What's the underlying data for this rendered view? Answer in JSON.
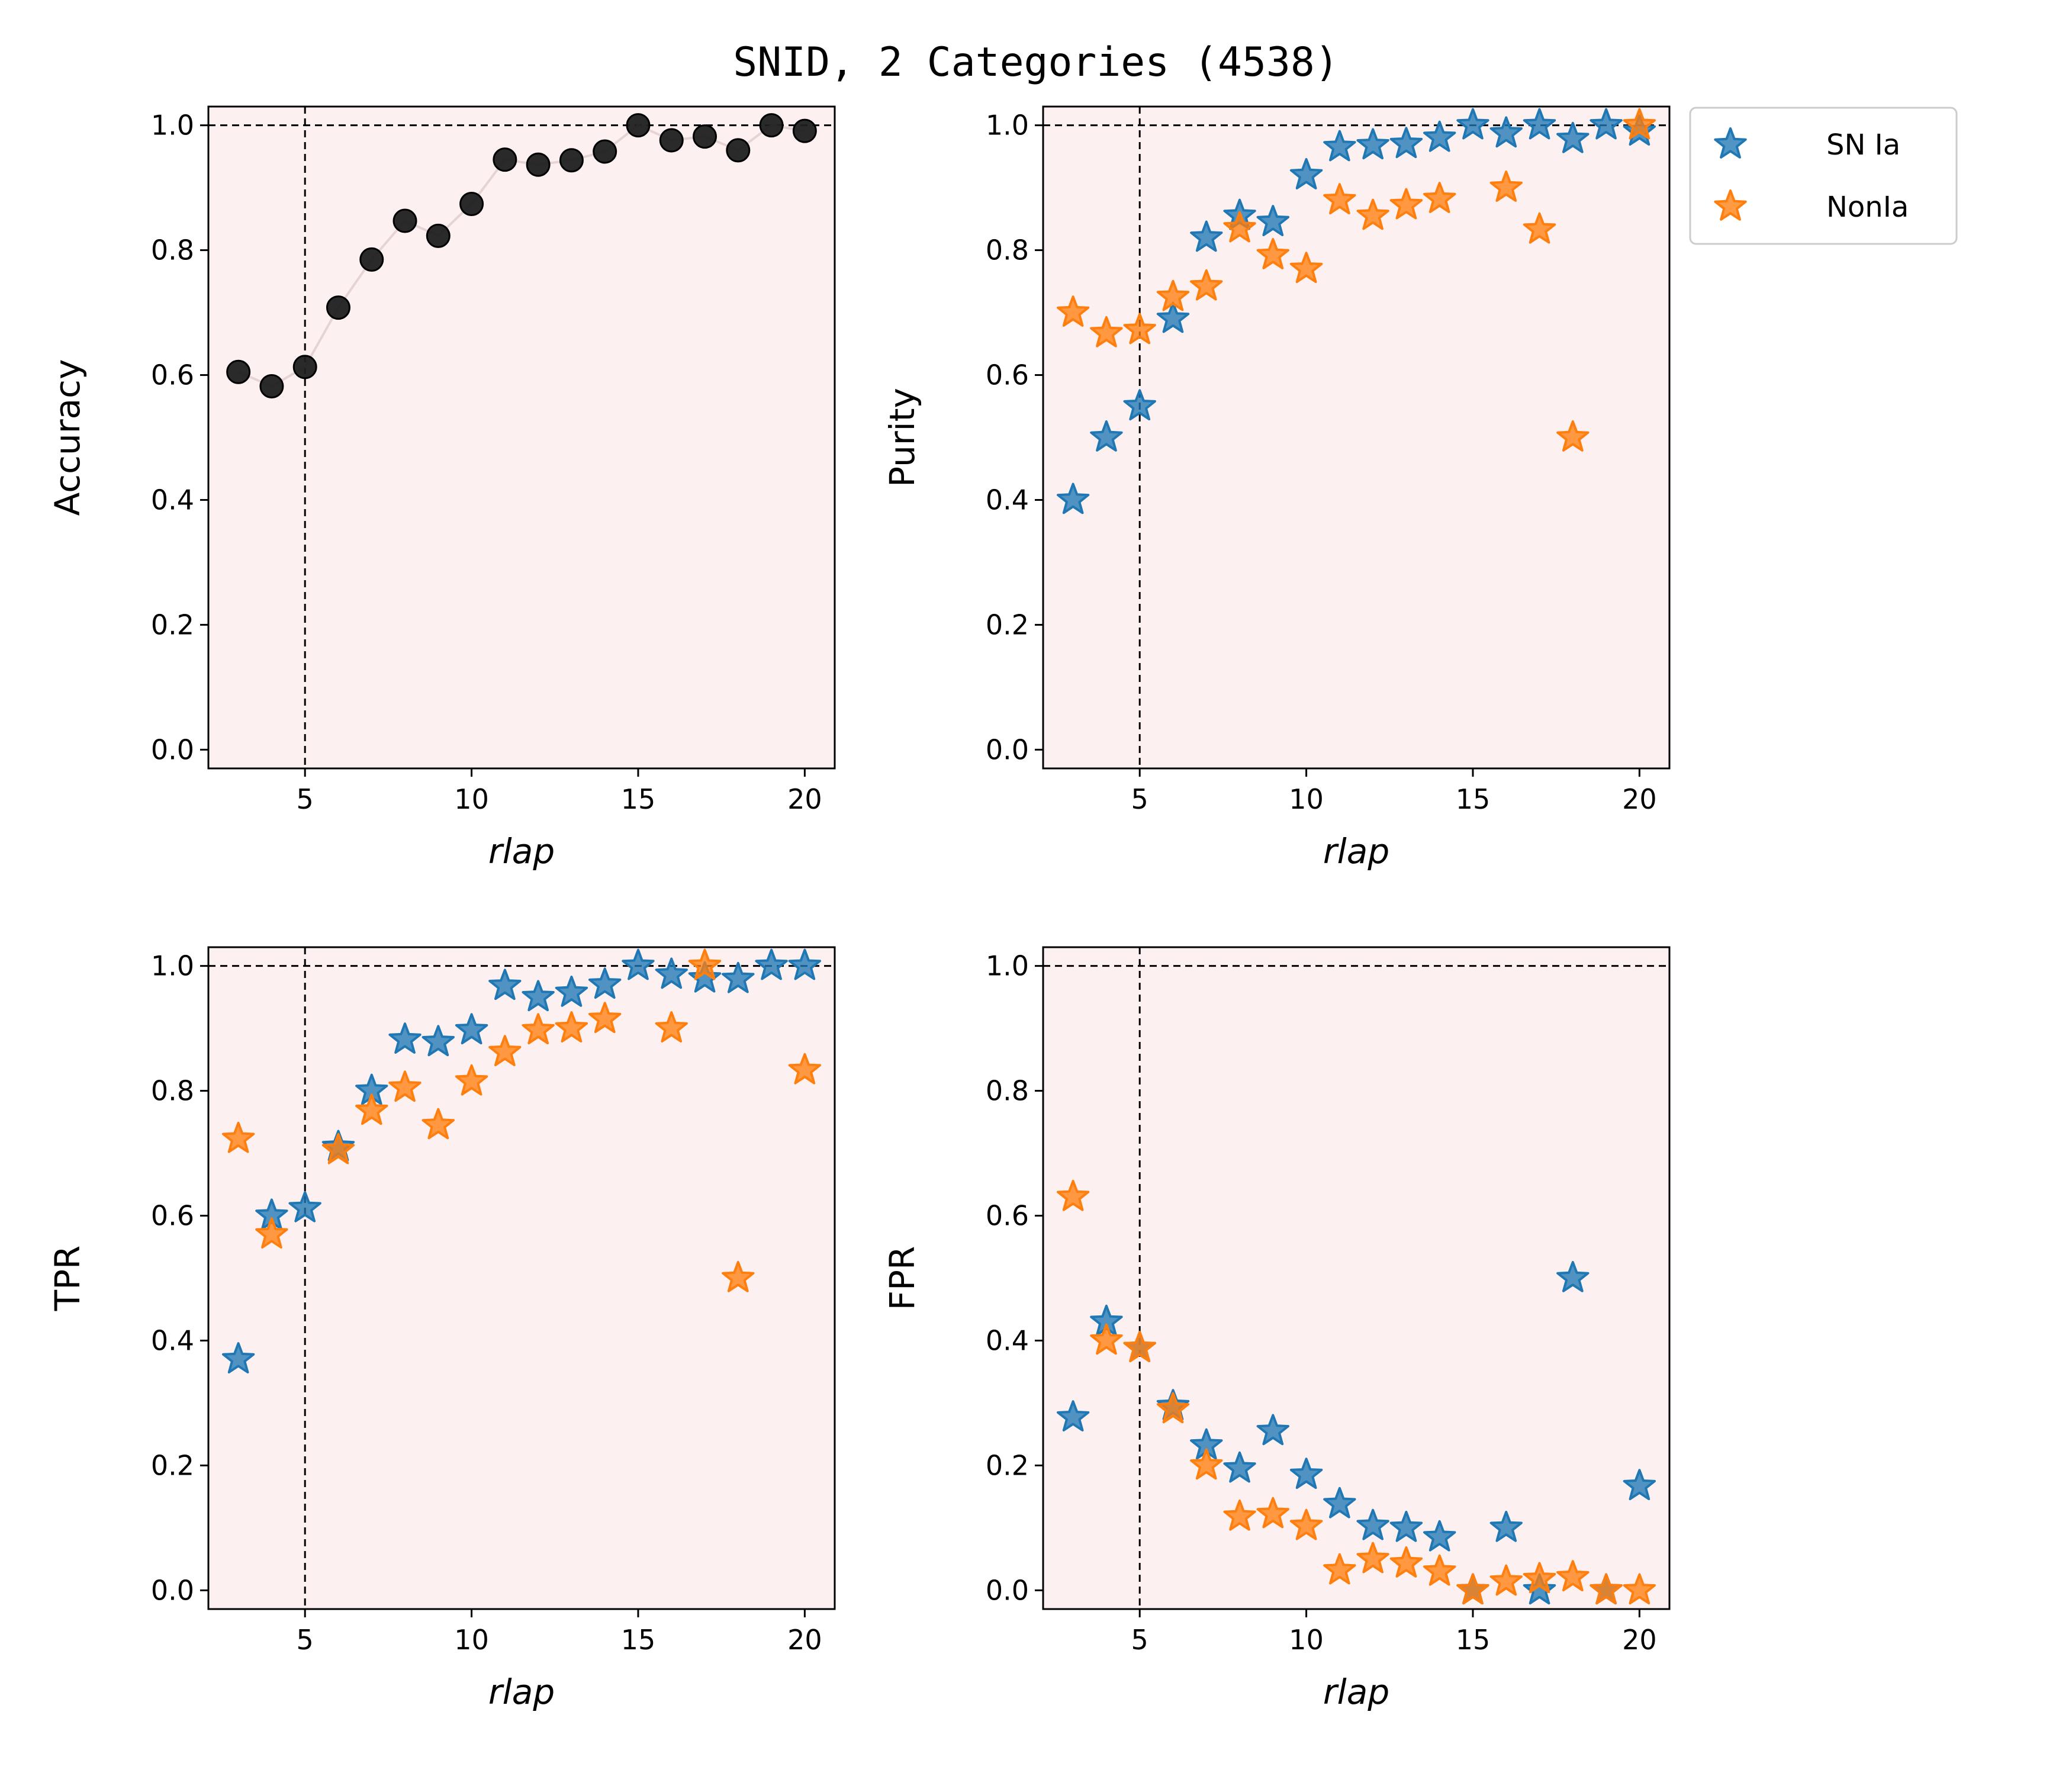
{
  "figure_title": "SNID, 2 Categories (4538)",
  "colors": {
    "panel_bg": "#fdf0f0",
    "acc": "#1f1f1f",
    "acc_line": "#e6d3d3",
    "snia": "#1f77b4",
    "nonia": "#ff7f0e",
    "ref": "#000000"
  },
  "legend": {
    "placement": "outside-right of top-right panel",
    "entries": [
      {
        "label": "SN Ia",
        "series": "snia"
      },
      {
        "label": "NonIa",
        "series": "nonia"
      }
    ]
  },
  "chart_data": [
    {
      "id": "accuracy",
      "type": "scatter",
      "title": "",
      "xlabel": "rlap",
      "ylabel": "Accuracy",
      "xlim": [
        2.1,
        20.9
      ],
      "ylim": [
        -0.03,
        1.03
      ],
      "xticks": [
        5,
        10,
        15,
        20
      ],
      "yticks": [
        0.0,
        0.2,
        0.4,
        0.6,
        0.8,
        1.0
      ],
      "xtick_labels": [
        "5",
        "10",
        "15",
        "20"
      ],
      "ytick_labels": [
        "0.0",
        "0.2",
        "0.4",
        "0.6",
        "0.8",
        "1.0"
      ],
      "reference_lines": {
        "hline": 1.0,
        "vline": 5
      },
      "connect_line": true,
      "series": [
        {
          "name": "Accuracy",
          "marker": "circle",
          "color_key": "acc",
          "x": [
            3,
            4,
            5,
            6,
            7,
            8,
            9,
            10,
            11,
            12,
            13,
            14,
            15,
            16,
            17,
            18,
            19,
            20
          ],
          "y": [
            0.605,
            0.582,
            0.613,
            0.708,
            0.785,
            0.847,
            0.823,
            0.874,
            0.945,
            0.937,
            0.944,
            0.958,
            1.0,
            0.976,
            0.982,
            0.96,
            1.0,
            0.991
          ]
        }
      ]
    },
    {
      "id": "purity",
      "type": "scatter",
      "title": "",
      "xlabel": "rlap",
      "ylabel": "Purity",
      "xlim": [
        2.1,
        20.9
      ],
      "ylim": [
        -0.03,
        1.03
      ],
      "xticks": [
        5,
        10,
        15,
        20
      ],
      "yticks": [
        0.0,
        0.2,
        0.4,
        0.6,
        0.8,
        1.0
      ],
      "xtick_labels": [
        "5",
        "10",
        "15",
        "20"
      ],
      "ytick_labels": [
        "0.0",
        "0.2",
        "0.4",
        "0.6",
        "0.8",
        "1.0"
      ],
      "reference_lines": {
        "hline": 1.0,
        "vline": 5
      },
      "connect_line": false,
      "series": [
        {
          "name": "SN Ia",
          "marker": "star",
          "color_key": "snia",
          "x": [
            3,
            4,
            5,
            6,
            7,
            8,
            9,
            10,
            11,
            12,
            13,
            14,
            15,
            16,
            17,
            18,
            19,
            20
          ],
          "y": [
            0.4,
            0.5,
            0.55,
            0.69,
            0.82,
            0.855,
            0.845,
            0.92,
            0.965,
            0.968,
            0.97,
            0.98,
            1.0,
            0.987,
            1.0,
            0.978,
            1.0,
            0.99
          ]
        },
        {
          "name": "NonIa",
          "marker": "star",
          "color_key": "nonia",
          "x": [
            3,
            4,
            5,
            6,
            7,
            8,
            9,
            10,
            11,
            12,
            13,
            14,
            16,
            17,
            18,
            20
          ],
          "y": [
            0.7,
            0.667,
            0.672,
            0.725,
            0.742,
            0.835,
            0.792,
            0.77,
            0.88,
            0.855,
            0.872,
            0.882,
            0.9,
            0.833,
            0.5,
            1.0
          ]
        }
      ]
    },
    {
      "id": "tpr",
      "type": "scatter",
      "title": "",
      "xlabel": "rlap",
      "ylabel": "TPR",
      "xlim": [
        2.1,
        20.9
      ],
      "ylim": [
        -0.03,
        1.03
      ],
      "xticks": [
        5,
        10,
        15,
        20
      ],
      "yticks": [
        0.0,
        0.2,
        0.4,
        0.6,
        0.8,
        1.0
      ],
      "xtick_labels": [
        "5",
        "10",
        "15",
        "20"
      ],
      "ytick_labels": [
        "0.0",
        "0.2",
        "0.4",
        "0.6",
        "0.8",
        "1.0"
      ],
      "reference_lines": {
        "hline": 1.0,
        "vline": 5
      },
      "connect_line": false,
      "series": [
        {
          "name": "SN Ia",
          "marker": "star",
          "color_key": "snia",
          "x": [
            3,
            4,
            5,
            6,
            7,
            8,
            9,
            10,
            11,
            12,
            13,
            14,
            15,
            16,
            17,
            18,
            19,
            20
          ],
          "y": [
            0.37,
            0.6,
            0.612,
            0.71,
            0.8,
            0.882,
            0.878,
            0.897,
            0.968,
            0.95,
            0.957,
            0.97,
            1.0,
            0.986,
            0.98,
            0.979,
            1.0,
            1.0
          ]
        },
        {
          "name": "NonIa",
          "marker": "star",
          "color_key": "nonia",
          "x": [
            3,
            4,
            6,
            7,
            8,
            9,
            10,
            11,
            12,
            13,
            14,
            16,
            17,
            18,
            20
          ],
          "y": [
            0.723,
            0.57,
            0.705,
            0.768,
            0.805,
            0.745,
            0.815,
            0.862,
            0.897,
            0.9,
            0.915,
            0.9,
            1.0,
            0.5,
            0.833
          ]
        }
      ]
    },
    {
      "id": "fpr",
      "type": "scatter",
      "title": "",
      "xlabel": "rlap",
      "ylabel": "FPR",
      "xlim": [
        2.1,
        20.9
      ],
      "ylim": [
        -0.03,
        1.03
      ],
      "xticks": [
        5,
        10,
        15,
        20
      ],
      "yticks": [
        0.0,
        0.2,
        0.4,
        0.6,
        0.8,
        1.0
      ],
      "xtick_labels": [
        "5",
        "10",
        "15",
        "20"
      ],
      "ytick_labels": [
        "0.0",
        "0.2",
        "0.4",
        "0.6",
        "0.8",
        "1.0"
      ],
      "reference_lines": {
        "hline": 1.0,
        "vline": 5
      },
      "connect_line": false,
      "series": [
        {
          "name": "SN Ia",
          "marker": "star",
          "color_key": "snia",
          "x": [
            3,
            4,
            5,
            6,
            7,
            8,
            9,
            10,
            11,
            12,
            13,
            14,
            15,
            16,
            17,
            18,
            19,
            20
          ],
          "y": [
            0.277,
            0.43,
            0.388,
            0.295,
            0.232,
            0.195,
            0.255,
            0.185,
            0.138,
            0.103,
            0.1,
            0.085,
            0.0,
            0.1,
            0.0,
            0.5,
            0.0,
            0.167
          ]
        },
        {
          "name": "NonIa",
          "marker": "star",
          "color_key": "nonia",
          "x": [
            3,
            4,
            5,
            6,
            7,
            8,
            9,
            10,
            11,
            12,
            13,
            14,
            15,
            16,
            17,
            18,
            19,
            20
          ],
          "y": [
            0.63,
            0.4,
            0.388,
            0.29,
            0.2,
            0.118,
            0.122,
            0.103,
            0.032,
            0.05,
            0.043,
            0.03,
            0.0,
            0.014,
            0.018,
            0.021,
            0.0,
            0.0
          ]
        }
      ]
    }
  ]
}
